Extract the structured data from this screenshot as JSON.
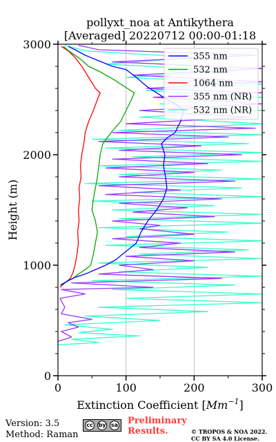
{
  "chart_data": {
    "type": "line",
    "title_line1": "pollyxt_noa at Antikythera",
    "title_line2": "[Averaged] 20220712 00:00-01:18",
    "xlabel": "Extinction Coefficient [",
    "xlabel_unit": "Mm",
    "xlabel_exp": "−1",
    "xlabel_close": "]",
    "ylabel": "Height (m)",
    "xlim": [
      0,
      300
    ],
    "ylim": [
      0,
      3000
    ],
    "x_ticks": [
      0,
      100,
      200,
      300
    ],
    "y_ticks": [
      0,
      1000,
      2000,
      3000
    ],
    "x_tick_labels": [
      "0",
      "100",
      "200",
      "300"
    ],
    "y_tick_labels": [
      "0",
      "1000",
      "2000",
      "3000"
    ],
    "grid": "vertical",
    "legend_position": "top-right",
    "series": [
      {
        "name": "355 nm",
        "color": "#0000ff",
        "points": [
          [
            5,
            820
          ],
          [
            15,
            860
          ],
          [
            25,
            890
          ],
          [
            40,
            920
          ],
          [
            55,
            960
          ],
          [
            70,
            1000
          ],
          [
            85,
            1050
          ],
          [
            95,
            1100
          ],
          [
            105,
            1150
          ],
          [
            115,
            1200
          ],
          [
            122,
            1300
          ],
          [
            132,
            1400
          ],
          [
            145,
            1500
          ],
          [
            155,
            1600
          ],
          [
            160,
            1700
          ],
          [
            158,
            1800
          ],
          [
            155,
            1900
          ],
          [
            157,
            2000
          ],
          [
            152,
            2100
          ],
          [
            160,
            2150
          ],
          [
            172,
            2200
          ],
          [
            180,
            2300
          ],
          [
            185,
            2400
          ],
          [
            175,
            2450
          ],
          [
            160,
            2500
          ],
          [
            145,
            2560
          ],
          [
            130,
            2620
          ],
          [
            115,
            2700
          ],
          [
            100,
            2770
          ],
          [
            80,
            2800
          ],
          [
            60,
            2850
          ],
          [
            40,
            2900
          ],
          [
            25,
            2950
          ],
          [
            15,
            2980
          ]
        ]
      },
      {
        "name": "532 nm",
        "color": "#00aa00",
        "points": [
          [
            3,
            820
          ],
          [
            12,
            850
          ],
          [
            22,
            880
          ],
          [
            30,
            920
          ],
          [
            40,
            960
          ],
          [
            48,
            1000
          ],
          [
            52,
            1100
          ],
          [
            55,
            1200
          ],
          [
            58,
            1300
          ],
          [
            55,
            1400
          ],
          [
            50,
            1500
          ],
          [
            52,
            1600
          ],
          [
            55,
            1700
          ],
          [
            58,
            1800
          ],
          [
            60,
            1900
          ],
          [
            62,
            2000
          ],
          [
            66,
            2100
          ],
          [
            78,
            2200
          ],
          [
            92,
            2300
          ],
          [
            100,
            2400
          ],
          [
            108,
            2500
          ],
          [
            112,
            2560
          ],
          [
            102,
            2600
          ],
          [
            82,
            2680
          ],
          [
            62,
            2750
          ],
          [
            45,
            2800
          ],
          [
            32,
            2870
          ],
          [
            18,
            2930
          ],
          [
            8,
            2980
          ]
        ]
      },
      {
        "name": "1064 nm",
        "color": "#ff0000",
        "points": [
          [
            3,
            800
          ],
          [
            10,
            840
          ],
          [
            18,
            880
          ],
          [
            22,
            930
          ],
          [
            25,
            1000
          ],
          [
            28,
            1100
          ],
          [
            30,
            1200
          ],
          [
            29,
            1300
          ],
          [
            31,
            1400
          ],
          [
            30,
            1500
          ],
          [
            32,
            1600
          ],
          [
            31,
            1700
          ],
          [
            34,
            1800
          ],
          [
            33,
            1900
          ],
          [
            35,
            2000
          ],
          [
            38,
            2100
          ],
          [
            40,
            2200
          ],
          [
            45,
            2300
          ],
          [
            52,
            2400
          ],
          [
            58,
            2500
          ],
          [
            62,
            2560
          ],
          [
            55,
            2600
          ],
          [
            45,
            2700
          ],
          [
            35,
            2800
          ],
          [
            25,
            2880
          ],
          [
            15,
            2940
          ],
          [
            5,
            2980
          ]
        ]
      },
      {
        "name": "355 nm (NR)",
        "color": "#9933ff",
        "points": [
          [
            0,
            310
          ],
          [
            20,
            350
          ],
          [
            5,
            400
          ],
          [
            30,
            440
          ],
          [
            15,
            480
          ],
          [
            50,
            510
          ],
          [
            5,
            560
          ],
          [
            10,
            620
          ],
          [
            3,
            700
          ],
          [
            40,
            740
          ],
          [
            5,
            780
          ],
          [
            140,
            800
          ],
          [
            20,
            840
          ],
          [
            240,
            880
          ],
          [
            60,
            920
          ],
          [
            140,
            960
          ],
          [
            90,
            1000
          ],
          [
            200,
            1040
          ],
          [
            100,
            1080
          ],
          [
            260,
            1120
          ],
          [
            120,
            1160
          ],
          [
            180,
            1200
          ],
          [
            80,
            1240
          ],
          [
            200,
            1280
          ],
          [
            120,
            1330
          ],
          [
            150,
            1360
          ],
          [
            80,
            1400
          ],
          [
            230,
            1440
          ],
          [
            110,
            1480
          ],
          [
            190,
            1520
          ],
          [
            90,
            1560
          ],
          [
            240,
            1600
          ],
          [
            70,
            1640
          ],
          [
            180,
            1680
          ],
          [
            60,
            1720
          ],
          [
            260,
            1760
          ],
          [
            90,
            1800
          ],
          [
            200,
            1840
          ],
          [
            70,
            1880
          ],
          [
            220,
            1920
          ],
          [
            80,
            1960
          ],
          [
            270,
            2000
          ],
          [
            90,
            2040
          ],
          [
            210,
            2080
          ],
          [
            60,
            2120
          ],
          [
            250,
            2160
          ],
          [
            80,
            2200
          ],
          [
            290,
            2240
          ],
          [
            100,
            2280
          ],
          [
            280,
            2340
          ],
          [
            120,
            2400
          ],
          [
            300,
            2460
          ],
          [
            140,
            2520
          ],
          [
            300,
            2560
          ],
          [
            130,
            2600
          ],
          [
            300,
            2660
          ],
          [
            110,
            2720
          ],
          [
            300,
            2780
          ],
          [
            80,
            2840
          ],
          [
            290,
            2900
          ],
          [
            60,
            2950
          ],
          [
            30,
            2990
          ]
        ]
      },
      {
        "name": "532 nm (NR)",
        "color": "#33ffcc",
        "points": [
          [
            0,
            280
          ],
          [
            60,
            300
          ],
          [
            20,
            330
          ],
          [
            120,
            360
          ],
          [
            30,
            390
          ],
          [
            80,
            420
          ],
          [
            10,
            460
          ],
          [
            150,
            500
          ],
          [
            40,
            540
          ],
          [
            220,
            580
          ],
          [
            60,
            620
          ],
          [
            300,
            660
          ],
          [
            100,
            700
          ],
          [
            300,
            740
          ],
          [
            80,
            780
          ],
          [
            260,
            820
          ],
          [
            50,
            860
          ],
          [
            300,
            900
          ],
          [
            90,
            940
          ],
          [
            220,
            980
          ],
          [
            60,
            1020
          ],
          [
            300,
            1060
          ],
          [
            120,
            1100
          ],
          [
            280,
            1140
          ],
          [
            70,
            1180
          ],
          [
            300,
            1220
          ],
          [
            100,
            1260
          ],
          [
            250,
            1300
          ],
          [
            60,
            1340
          ],
          [
            300,
            1380
          ],
          [
            90,
            1420
          ],
          [
            300,
            1460
          ],
          [
            80,
            1500
          ],
          [
            230,
            1540
          ],
          [
            50,
            1580
          ],
          [
            300,
            1620
          ],
          [
            110,
            1660
          ],
          [
            270,
            1700
          ],
          [
            40,
            1740
          ],
          [
            300,
            1780
          ],
          [
            90,
            1820
          ],
          [
            240,
            1860
          ],
          [
            60,
            1900
          ],
          [
            300,
            1940
          ],
          [
            110,
            1980
          ],
          [
            300,
            2020
          ],
          [
            70,
            2060
          ],
          [
            280,
            2100
          ],
          [
            50,
            2140
          ],
          [
            300,
            2180
          ],
          [
            90,
            2220
          ],
          [
            300,
            2280
          ],
          [
            120,
            2340
          ],
          [
            300,
            2400
          ],
          [
            150,
            2460
          ],
          [
            300,
            2520
          ],
          [
            130,
            2580
          ],
          [
            300,
            2640
          ],
          [
            100,
            2700
          ],
          [
            260,
            2760
          ],
          [
            70,
            2820
          ],
          [
            200,
            2880
          ],
          [
            40,
            2940
          ],
          [
            10,
            2990
          ]
        ]
      }
    ]
  },
  "footer": {
    "version": "Version: 3.5",
    "method": "Method: Raman",
    "license_badge": [
      "cc",
      "by",
      "sa"
    ],
    "preliminary_line1": "Preliminary",
    "preliminary_line2": "Results.",
    "copyright_line1": "© TROPOS & NOA 2022.",
    "copyright_line2": "CC BY SA 4.0 License."
  }
}
